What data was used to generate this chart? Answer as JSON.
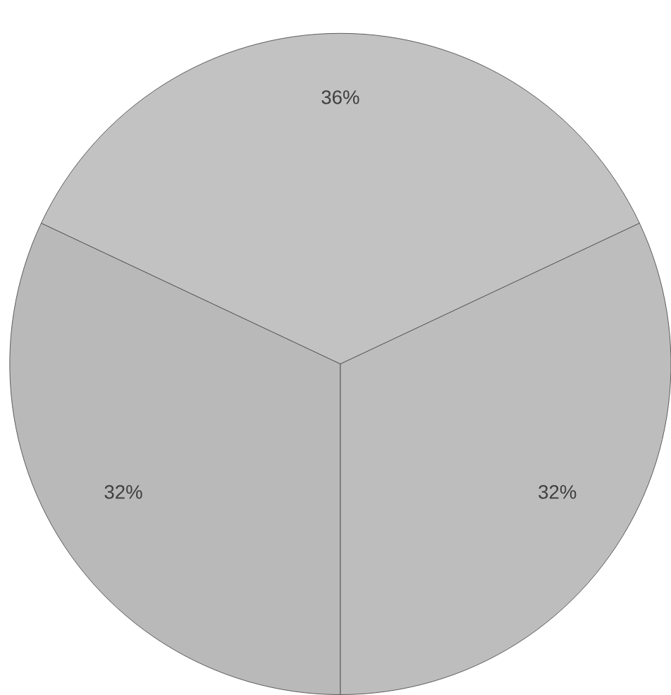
{
  "chart_data": {
    "type": "pie",
    "categories": [
      null,
      null,
      null
    ],
    "values": [
      36,
      32,
      32
    ],
    "value_labels": [
      "36%",
      "32%",
      "32%"
    ],
    "colors": [
      "#c2c2c2",
      "#b9b9b9",
      "#bdbdbd"
    ]
  }
}
